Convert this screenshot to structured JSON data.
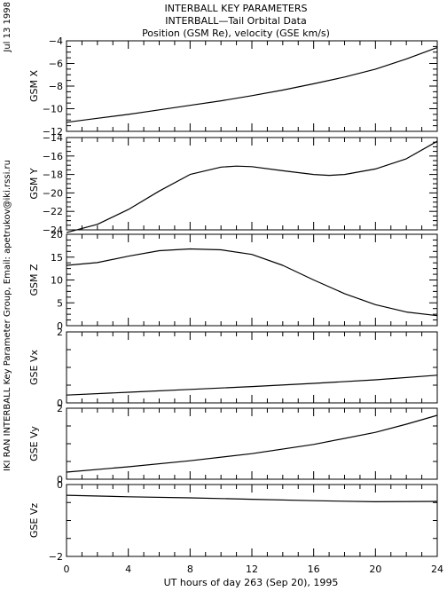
{
  "header": {
    "line1": "INTERBALL KEY PARAMETERS",
    "line2": "INTERBALL—Tail Orbital Data",
    "line3": "Position (GSM Re), velocity (GSE km/s)"
  },
  "side_date": "Jul 13 1998",
  "side_credit": "IKI RAN INTERBALL Key Parameter Group, Email: apetrukov@iki.rssi.ru",
  "colors": {
    "line": "#000000",
    "background": "#ffffff"
  },
  "chart_data": {
    "type": "line",
    "xlabel": "UT hours of day 263 (Sep 20), 1995",
    "xlim": [
      0,
      24
    ],
    "xticks": [
      0,
      4,
      8,
      12,
      16,
      20,
      24
    ],
    "panels": [
      {
        "ylabel": "GSM X",
        "ylim": [
          -12,
          -4
        ],
        "yticks": [
          -12,
          -10,
          -8,
          -6,
          -4
        ],
        "x": [
          0,
          2,
          4,
          6,
          8,
          10,
          12,
          14,
          16,
          18,
          20,
          22,
          24
        ],
        "y": [
          -11.2,
          -10.85,
          -10.5,
          -10.1,
          -9.7,
          -9.3,
          -8.85,
          -8.35,
          -7.8,
          -7.2,
          -6.5,
          -5.6,
          -4.6
        ]
      },
      {
        "ylabel": "GSM Y",
        "ylim": [
          -24,
          -14
        ],
        "yticks": [
          -24,
          -22,
          -20,
          -18,
          -16,
          -14
        ],
        "x": [
          0,
          2,
          4,
          6,
          8,
          10,
          11,
          12,
          14,
          16,
          17,
          18,
          20,
          22,
          24
        ],
        "y": [
          -24.3,
          -23.4,
          -21.8,
          -19.8,
          -18.0,
          -17.2,
          -17.1,
          -17.15,
          -17.6,
          -18.0,
          -18.1,
          -18.0,
          -17.4,
          -16.3,
          -14.4
        ]
      },
      {
        "ylabel": "GSM Z",
        "ylim": [
          0,
          20
        ],
        "yticks": [
          0,
          5,
          10,
          15,
          20
        ],
        "x": [
          0,
          2,
          4,
          6,
          8,
          10,
          12,
          14,
          16,
          18,
          20,
          22,
          24
        ],
        "y": [
          13.2,
          13.8,
          15.2,
          16.4,
          16.8,
          16.6,
          15.6,
          13.2,
          10.0,
          7.0,
          4.6,
          3.0,
          2.2
        ]
      },
      {
        "ylabel": "GSE Vx",
        "ylim": [
          0,
          2
        ],
        "yticks": [
          0,
          2
        ],
        "x": [
          0,
          4,
          8,
          12,
          16,
          20,
          24
        ],
        "y": [
          0.22,
          0.3,
          0.38,
          0.46,
          0.55,
          0.65,
          0.78
        ]
      },
      {
        "ylabel": "GSE Vy",
        "ylim": [
          0,
          2
        ],
        "yticks": [
          0,
          2
        ],
        "x": [
          0,
          4,
          8,
          12,
          16,
          20,
          22,
          24
        ],
        "y": [
          0.2,
          0.35,
          0.52,
          0.72,
          0.98,
          1.32,
          1.55,
          1.8
        ]
      },
      {
        "ylabel": "GSE Vz",
        "ylim": [
          -2,
          0
        ],
        "yticks": [
          -2,
          0
        ],
        "x": [
          0,
          4,
          8,
          12,
          16,
          20,
          24
        ],
        "y": [
          -0.3,
          -0.34,
          -0.37,
          -0.41,
          -0.45,
          -0.48,
          -0.47
        ]
      }
    ]
  }
}
